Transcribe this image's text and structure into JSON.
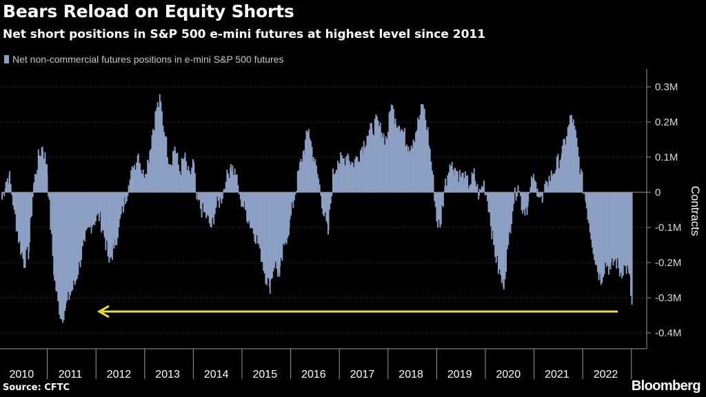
{
  "title": "Bears Reload on Equity Shorts",
  "subtitle": "Net short positions in S&P 500 e-mini futures at highest level since 2011",
  "source": "Source: CFTC",
  "brand": "Bloomberg",
  "colors": {
    "series": "#8ca0c3",
    "arrow": "#f2e21a",
    "grid": "#4a4a4a",
    "background": "#000000"
  },
  "chart_data": {
    "type": "bar",
    "title": "Bears Reload on Equity Shorts",
    "subtitle": "Net short positions in S&P 500 e-mini futures at highest level since 2011",
    "ylabel": "Contracts",
    "xlabel": "",
    "ylim": [
      -0.42,
      0.35
    ],
    "y_ticks": [
      0.3,
      0.2,
      0.1,
      0,
      -0.1,
      -0.2,
      -0.3,
      -0.4
    ],
    "y_tick_labels": [
      "0.3M",
      "0.2M",
      "0.1M",
      "0",
      "-0.1M",
      "-0.2M",
      "-0.3M",
      "-0.4M"
    ],
    "x_tick_labels": [
      "2010",
      "2011",
      "2012",
      "2013",
      "2014",
      "2015",
      "2016",
      "2017",
      "2018",
      "2019",
      "2020",
      "2021",
      "2022"
    ],
    "x_range": [
      2010,
      2022.95
    ],
    "grid": true,
    "legend_position": "top-left",
    "annotation": "arrow pointing from latest value back to 2011 level",
    "series": [
      {
        "name": "Net non-commercial futures positions in e-mini S&P 500 futures",
        "unit": "million contracts",
        "points": [
          [
            2010.0,
            -0.02
          ],
          [
            2010.08,
            0.03
          ],
          [
            2010.15,
            0.05
          ],
          [
            2010.25,
            -0.05
          ],
          [
            2010.35,
            -0.14
          ],
          [
            2010.45,
            -0.2
          ],
          [
            2010.55,
            -0.17
          ],
          [
            2010.65,
            0.02
          ],
          [
            2010.75,
            0.1
          ],
          [
            2010.83,
            0.13
          ],
          [
            2010.92,
            0.08
          ],
          [
            2011.0,
            -0.1
          ],
          [
            2011.08,
            -0.25
          ],
          [
            2011.15,
            -0.31
          ],
          [
            2011.22,
            -0.36
          ],
          [
            2011.3,
            -0.33
          ],
          [
            2011.4,
            -0.29
          ],
          [
            2011.5,
            -0.26
          ],
          [
            2011.6,
            -0.2
          ],
          [
            2011.7,
            -0.14
          ],
          [
            2011.8,
            -0.1
          ],
          [
            2011.9,
            -0.08
          ],
          [
            2012.0,
            -0.07
          ],
          [
            2012.1,
            -0.12
          ],
          [
            2012.2,
            -0.2
          ],
          [
            2012.3,
            -0.16
          ],
          [
            2012.4,
            -0.1
          ],
          [
            2012.5,
            -0.04
          ],
          [
            2012.6,
            0.02
          ],
          [
            2012.7,
            0.07
          ],
          [
            2012.8,
            0.11
          ],
          [
            2012.9,
            0.05
          ],
          [
            2013.0,
            0.09
          ],
          [
            2013.1,
            0.18
          ],
          [
            2013.18,
            0.24
          ],
          [
            2013.25,
            0.26
          ],
          [
            2013.35,
            0.16
          ],
          [
            2013.45,
            0.08
          ],
          [
            2013.55,
            0.13
          ],
          [
            2013.65,
            0.06
          ],
          [
            2013.75,
            0.1
          ],
          [
            2013.85,
            0.04
          ],
          [
            2013.93,
            0.09
          ],
          [
            2014.0,
            -0.02
          ],
          [
            2014.1,
            -0.05
          ],
          [
            2014.2,
            -0.07
          ],
          [
            2014.3,
            -0.1
          ],
          [
            2014.4,
            -0.04
          ],
          [
            2014.5,
            -0.02
          ],
          [
            2014.6,
            0.03
          ],
          [
            2014.7,
            0.08
          ],
          [
            2014.8,
            0.05
          ],
          [
            2014.9,
            -0.02
          ],
          [
            2015.0,
            -0.05
          ],
          [
            2015.1,
            -0.09
          ],
          [
            2015.2,
            -0.12
          ],
          [
            2015.3,
            -0.16
          ],
          [
            2015.4,
            -0.23
          ],
          [
            2015.5,
            -0.27
          ],
          [
            2015.6,
            -0.2
          ],
          [
            2015.7,
            -0.24
          ],
          [
            2015.8,
            -0.15
          ],
          [
            2015.9,
            -0.1
          ],
          [
            2016.0,
            -0.02
          ],
          [
            2016.1,
            0.06
          ],
          [
            2016.2,
            0.12
          ],
          [
            2016.3,
            0.18
          ],
          [
            2016.4,
            0.1
          ],
          [
            2016.5,
            0.04
          ],
          [
            2016.6,
            -0.05
          ],
          [
            2016.7,
            -0.12
          ],
          [
            2016.8,
            0.05
          ],
          [
            2016.9,
            0.09
          ],
          [
            2017.0,
            0.09
          ],
          [
            2017.1,
            0.11
          ],
          [
            2017.2,
            0.08
          ],
          [
            2017.3,
            0.1
          ],
          [
            2017.4,
            0.13
          ],
          [
            2017.5,
            0.16
          ],
          [
            2017.6,
            0.18
          ],
          [
            2017.7,
            0.2
          ],
          [
            2017.8,
            0.17
          ],
          [
            2017.9,
            0.15
          ],
          [
            2018.0,
            0.25
          ],
          [
            2018.08,
            0.21
          ],
          [
            2018.16,
            0.19
          ],
          [
            2018.25,
            0.17
          ],
          [
            2018.35,
            0.13
          ],
          [
            2018.45,
            0.15
          ],
          [
            2018.55,
            0.2
          ],
          [
            2018.65,
            0.25
          ],
          [
            2018.75,
            0.17
          ],
          [
            2018.85,
            0.05
          ],
          [
            2018.93,
            -0.08
          ],
          [
            2019.0,
            -0.1
          ],
          [
            2019.1,
            0.02
          ],
          [
            2019.2,
            0.08
          ],
          [
            2019.3,
            0.07
          ],
          [
            2019.4,
            0.05
          ],
          [
            2019.5,
            0.04
          ],
          [
            2019.6,
            0.02
          ],
          [
            2019.7,
            0.05
          ],
          [
            2019.8,
            -0.01
          ],
          [
            2019.9,
            0.03
          ],
          [
            2020.0,
            -0.04
          ],
          [
            2020.1,
            -0.15
          ],
          [
            2020.2,
            -0.22
          ],
          [
            2020.3,
            -0.27
          ],
          [
            2020.4,
            -0.15
          ],
          [
            2020.5,
            -0.03
          ],
          [
            2020.6,
            0.02
          ],
          [
            2020.7,
            -0.05
          ],
          [
            2020.8,
            -0.04
          ],
          [
            2020.9,
            0.04
          ],
          [
            2021.0,
            0.01
          ],
          [
            2021.1,
            -0.03
          ],
          [
            2021.2,
            0.03
          ],
          [
            2021.3,
            0.05
          ],
          [
            2021.4,
            0.08
          ],
          [
            2021.5,
            0.11
          ],
          [
            2021.6,
            0.16
          ],
          [
            2021.7,
            0.22
          ],
          [
            2021.8,
            0.15
          ],
          [
            2021.9,
            0.05
          ],
          [
            2022.0,
            -0.03
          ],
          [
            2022.1,
            -0.12
          ],
          [
            2022.2,
            -0.2
          ],
          [
            2022.3,
            -0.25
          ],
          [
            2022.4,
            -0.2
          ],
          [
            2022.5,
            -0.22
          ],
          [
            2022.6,
            -0.19
          ],
          [
            2022.7,
            -0.23
          ],
          [
            2022.8,
            -0.21
          ],
          [
            2022.88,
            -0.23
          ],
          [
            2022.94,
            -0.32
          ]
        ]
      }
    ]
  }
}
